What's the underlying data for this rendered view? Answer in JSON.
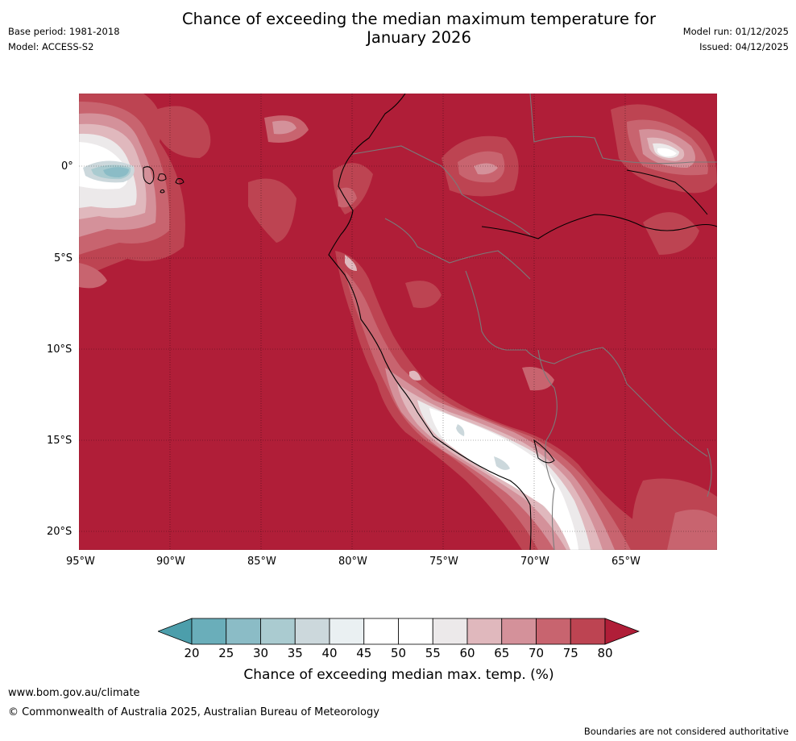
{
  "header": {
    "base_period": "Base period: 1981-2018",
    "model": "Model: ACCESS-S2",
    "title_line1": "Chance of exceeding the median maximum temperature for",
    "title_line2": "January 2026",
    "model_run": "Model run: 01/12/2025",
    "issued": "Issued: 04/12/2025"
  },
  "map": {
    "lat_labels": [
      "0°",
      "5°S",
      "10°S",
      "15°S",
      "20°S"
    ],
    "lon_labels": [
      "95°W",
      "90°W",
      "85°W",
      "80°W",
      "75°W",
      "70°W",
      "65°W"
    ],
    "dominant_fill_color": "#b01e38"
  },
  "colorbar": {
    "ticks": [
      "20",
      "25",
      "30",
      "35",
      "40",
      "45",
      "50",
      "55",
      "60",
      "65",
      "70",
      "75",
      "80"
    ],
    "colors": [
      "#4c9eab",
      "#6aaeba",
      "#8bbcc6",
      "#aacbd0",
      "#ccd8dc",
      "#eaf0f2",
      "#ffffff",
      "#ffffff",
      "#ece9ea",
      "#e0b8bd",
      "#d4919a",
      "#c8646f",
      "#bd4452",
      "#b01e38"
    ],
    "label": "Chance of exceeding median max. temp. (%)"
  },
  "footer": {
    "website": "www.bom.gov.au/climate",
    "copyright": "© Commonwealth of Australia 2025, Australian Bureau of Meteorology",
    "disclaimer": "Boundaries are not considered authoritative"
  }
}
